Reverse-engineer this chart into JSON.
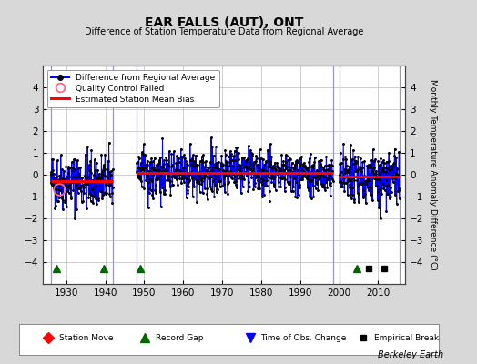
{
  "title": "EAR FALLS (AUT), ONT",
  "subtitle": "Difference of Station Temperature Data from Regional Average",
  "ylabel": "Monthly Temperature Anomaly Difference (°C)",
  "xlabel_bottom": "Berkeley Earth",
  "ylim": [
    -5,
    5
  ],
  "xlim": [
    1924,
    2017
  ],
  "background_color": "#d8d8d8",
  "plot_bg_color": "#ffffff",
  "grid_color": "#bbbbbb",
  "data_segments": [
    {
      "start": 1926.0,
      "end": 1942.0,
      "mean": -0.3
    },
    {
      "start": 1948.0,
      "end": 1998.5,
      "mean": 0.08
    },
    {
      "start": 2000.0,
      "end": 2015.5,
      "mean": -0.1
    }
  ],
  "record_gaps": [
    1927.5,
    1939.5,
    1949.0,
    2004.5
  ],
  "empirical_breaks": [
    2007.5,
    2011.5
  ],
  "qc_failed_x": 1928.2,
  "qc_failed_y": -0.65,
  "vertical_lines": [
    1926.0,
    1942.0,
    1948.0,
    1998.5,
    2000.0,
    2015.5
  ],
  "seed": 42,
  "noise_scale_seg1": 0.65,
  "noise_scale_seg2": 0.5,
  "noise_scale_seg3": 0.6
}
